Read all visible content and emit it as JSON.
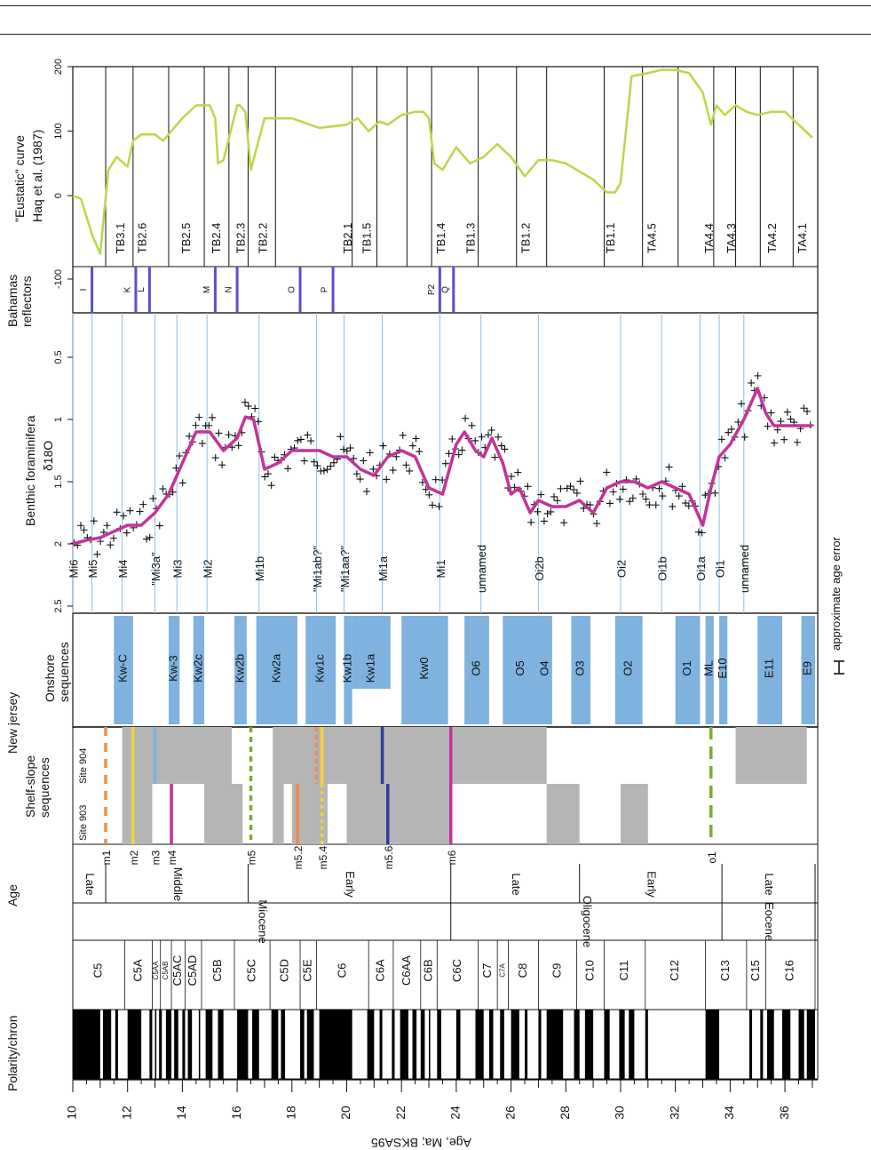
{
  "colors": {
    "eustatic": "#b7d94a",
    "isotope_mean": "#c2339a",
    "onshore_fill": "#7fb2de",
    "sequence_grey": "#b5b5b5",
    "reflector_line": "#5b4fc9",
    "mi_line": "#8cc0e6"
  },
  "row_labels": {
    "polarity": "Polarity/chron",
    "age": "Age",
    "shelf_slope": "Shelf-slope\nsequences",
    "site_903": "Site 903",
    "site_904": "Site 904",
    "new_jersey": "New jersey",
    "onshore": "Onshore\nsequences",
    "isotope_line1": "Benthic foraminifera",
    "isotope_line2": "δ18O",
    "bahamas": "Bahamas\nreflectors",
    "eustatic_line1": "\"Eustatic\" curve",
    "eustatic_line2": "Haq et al. (1987)",
    "age_axis_title": "Age, Ma; BKSA95",
    "age_error": "approximate age error"
  },
  "chart_data": {
    "type": "line",
    "x_axis": {
      "label": "Age, Ma; BKSA95",
      "range": [
        10,
        37.1
      ],
      "ticks": [
        10,
        12,
        14,
        16,
        18,
        20,
        22,
        24,
        26,
        28,
        30,
        32,
        34,
        36
      ]
    },
    "chrons": [
      {
        "name": "C5",
        "start": 10.0,
        "end": 11.9
      },
      {
        "name": "C5A",
        "start": 11.9,
        "end": 12.9
      },
      {
        "name": "C5AA",
        "start": 12.9,
        "end": 13.2
      },
      {
        "name": "C5AB",
        "start": 13.2,
        "end": 13.6
      },
      {
        "name": "C5AC",
        "start": 13.6,
        "end": 14.1
      },
      {
        "name": "C5AD",
        "start": 14.1,
        "end": 14.7
      },
      {
        "name": "C5B",
        "start": 14.7,
        "end": 15.9
      },
      {
        "name": "C5C",
        "start": 15.9,
        "end": 17.2
      },
      {
        "name": "C5D",
        "start": 17.2,
        "end": 18.3
      },
      {
        "name": "C5E",
        "start": 18.3,
        "end": 18.9
      },
      {
        "name": "C6",
        "start": 18.9,
        "end": 20.8
      },
      {
        "name": "C6A",
        "start": 20.8,
        "end": 21.7
      },
      {
        "name": "C6AA",
        "start": 21.7,
        "end": 22.7
      },
      {
        "name": "C6B",
        "start": 22.7,
        "end": 23.3
      },
      {
        "name": "C6C",
        "start": 23.3,
        "end": 24.8
      },
      {
        "name": "C7",
        "start": 24.8,
        "end": 25.5
      },
      {
        "name": "C7A",
        "start": 25.5,
        "end": 25.9
      },
      {
        "name": "C8",
        "start": 25.9,
        "end": 27.0
      },
      {
        "name": "C9",
        "start": 27.0,
        "end": 28.4
      },
      {
        "name": "C10",
        "start": 28.4,
        "end": 29.4
      },
      {
        "name": "C11",
        "start": 29.4,
        "end": 30.9
      },
      {
        "name": "C12",
        "start": 30.9,
        "end": 33.1
      },
      {
        "name": "C13",
        "start": 33.1,
        "end": 34.6
      },
      {
        "name": "C15",
        "start": 34.6,
        "end": 35.3
      },
      {
        "name": "C16",
        "start": 35.3,
        "end": 37.1
      }
    ],
    "polarity_normal": [
      [
        10.0,
        11.0
      ],
      [
        11.1,
        11.4
      ],
      [
        11.55,
        11.65
      ],
      [
        12.0,
        12.5
      ],
      [
        12.8,
        12.9
      ],
      [
        13.0,
        13.05
      ],
      [
        13.15,
        13.25
      ],
      [
        13.4,
        13.6
      ],
      [
        13.7,
        13.85
      ],
      [
        14.0,
        14.1
      ],
      [
        14.2,
        14.35
      ],
      [
        14.6,
        14.65
      ],
      [
        14.85,
        15.1
      ],
      [
        15.3,
        15.5
      ],
      [
        16.0,
        16.4
      ],
      [
        16.55,
        16.8
      ],
      [
        17.25,
        17.5
      ],
      [
        17.6,
        17.75
      ],
      [
        18.3,
        18.45
      ],
      [
        18.55,
        18.8
      ],
      [
        19.0,
        20.2
      ],
      [
        20.75,
        21.0
      ],
      [
        21.2,
        21.3
      ],
      [
        21.65,
        21.75
      ],
      [
        21.95,
        22.25
      ],
      [
        22.4,
        22.55
      ],
      [
        22.7,
        22.85
      ],
      [
        23.0,
        23.05
      ],
      [
        23.3,
        23.45
      ],
      [
        24.0,
        24.15
      ],
      [
        24.7,
        25.0
      ],
      [
        25.2,
        25.35
      ],
      [
        25.6,
        25.75
      ],
      [
        26.0,
        26.3
      ],
      [
        26.5,
        26.6
      ],
      [
        27.0,
        27.1
      ],
      [
        27.3,
        27.9
      ],
      [
        28.3,
        28.5
      ],
      [
        28.7,
        29.0
      ],
      [
        29.4,
        29.6
      ],
      [
        29.95,
        30.15
      ],
      [
        30.3,
        30.5
      ],
      [
        30.9,
        31.0
      ],
      [
        33.1,
        33.6
      ],
      [
        34.7,
        34.8
      ],
      [
        35.1,
        35.2
      ],
      [
        35.35,
        35.6
      ],
      [
        35.9,
        36.2
      ],
      [
        36.5,
        36.7
      ],
      [
        36.8,
        37.1
      ]
    ],
    "epochs": [
      {
        "label": "Miocene",
        "start": 10.0,
        "end": 23.8
      },
      {
        "label": "Oligocene",
        "start": 23.8,
        "end": 33.7
      },
      {
        "label": "Eocene",
        "start": 33.7,
        "end": 37.1
      }
    ],
    "stages": [
      {
        "label": "Late",
        "start": 10.0,
        "end": 11.2
      },
      {
        "label": "Middle",
        "start": 11.2,
        "end": 16.4
      },
      {
        "label": "Early",
        "start": 16.4,
        "end": 23.8
      },
      {
        "label": "Late",
        "start": 23.8,
        "end": 28.5
      },
      {
        "label": "Early",
        "start": 28.5,
        "end": 33.7
      },
      {
        "label": "Late",
        "start": 33.7,
        "end": 37.1
      }
    ],
    "seismic_sequences": [
      {
        "label": "m1",
        "age": 11.2
      },
      {
        "label": "m2",
        "age": 12.2
      },
      {
        "label": "m3",
        "age": 13.0
      },
      {
        "label": "m4",
        "age": 13.6
      },
      {
        "label": "m5",
        "age": 16.5
      },
      {
        "label": "m5.2",
        "age": 18.2
      },
      {
        "label": "m5.4",
        "age": 19.1
      },
      {
        "label": "m5.6",
        "age": 21.5
      },
      {
        "label": "m6",
        "age": 23.8
      },
      {
        "label": "o1",
        "age": 33.3
      }
    ],
    "shelf_grey_904": [
      [
        11.8,
        15.8
      ],
      [
        17.3,
        27.3
      ],
      [
        34.2,
        36.8
      ]
    ],
    "shelf_grey_903": [
      [
        11.8,
        12.9
      ],
      [
        14.8,
        16.2
      ],
      [
        17.3,
        17.7
      ],
      [
        18.0,
        19.3
      ],
      [
        20.0,
        23.8
      ],
      [
        27.3,
        28.5
      ],
      [
        30.0,
        31.0
      ]
    ],
    "onshore_sequences": [
      {
        "label": "Kw-C",
        "start": 11.5,
        "end": 12.2
      },
      {
        "label": "Kw-3",
        "start": 13.5,
        "end": 13.9
      },
      {
        "label": "Kw2c",
        "start": 14.4,
        "end": 14.8
      },
      {
        "label": "Kw2b",
        "start": 15.9,
        "end": 16.35
      },
      {
        "label": "Kw2a",
        "start": 16.7,
        "end": 18.2
      },
      {
        "label": "Kw1c",
        "start": 18.5,
        "end": 19.6
      },
      {
        "label": "Kw1b",
        "start": 19.9,
        "end": 20.2
      },
      {
        "label": "Kw1a",
        "start": 20.2,
        "end": 21.6
      },
      {
        "label": "Kw0",
        "start": 22.0,
        "end": 23.7
      },
      {
        "label": "O6",
        "start": 24.3,
        "end": 25.2
      },
      {
        "label": "O5",
        "start": 25.7,
        "end": 27.0
      },
      {
        "label": "O4",
        "start": 27.0,
        "end": 27.5
      },
      {
        "label": "O3",
        "start": 28.2,
        "end": 28.9
      },
      {
        "label": "O2",
        "start": 29.8,
        "end": 30.8
      },
      {
        "label": "O1",
        "start": 32.0,
        "end": 32.9
      },
      {
        "label": "ML",
        "start": 33.1,
        "end": 33.4
      },
      {
        "label": "E10",
        "start": 33.6,
        "end": 33.9
      },
      {
        "label": "E11",
        "start": 35.0,
        "end": 35.9
      },
      {
        "label": "E9",
        "start": 36.6,
        "end": 37.1
      }
    ],
    "isotope_events": [
      {
        "label": "Mi6",
        "age": 10.0
      },
      {
        "label": "Mi5",
        "age": 10.7
      },
      {
        "label": "Mi4",
        "age": 11.8
      },
      {
        "label": "\"Mi3a\"",
        "age": 13.0
      },
      {
        "label": "Mi3",
        "age": 13.8
      },
      {
        "label": "Mi2",
        "age": 14.9
      },
      {
        "label": "Mi1b",
        "age": 16.8
      },
      {
        "label": "\"Mi1ab?\"",
        "age": 18.9
      },
      {
        "label": "\"Mi1aa?\"",
        "age": 19.9
      },
      {
        "label": "Mi1a",
        "age": 21.3
      },
      {
        "label": "Mi1",
        "age": 23.4
      },
      {
        "label": "unnamed",
        "age": 24.9
      },
      {
        "label": "Oi2b",
        "age": 27.0
      },
      {
        "label": "Oi2",
        "age": 30.0
      },
      {
        "label": "Oi1b",
        "age": 31.5
      },
      {
        "label": "Oi1a",
        "age": 32.9
      },
      {
        "label": "Oi1",
        "age": 33.6
      },
      {
        "label": "unnamed",
        "age": 34.5
      }
    ],
    "isotope_axis": {
      "range": [
        2.5,
        0.2
      ],
      "ticks": [
        2.5,
        2,
        1.5,
        1,
        0.5
      ]
    },
    "isotope_mean": {
      "x": [
        10.0,
        10.5,
        11.0,
        11.5,
        12.0,
        12.5,
        13.0,
        13.5,
        14.0,
        14.5,
        15.0,
        15.5,
        16.0,
        16.3,
        16.6,
        17.0,
        17.5,
        18.0,
        18.5,
        19.0,
        19.5,
        20.0,
        20.5,
        21.0,
        21.5,
        22.0,
        22.5,
        23.0,
        23.5,
        24.0,
        24.3,
        24.7,
        25.0,
        25.3,
        25.7,
        26.0,
        26.3,
        26.7,
        27.0,
        27.5,
        28.0,
        28.5,
        29.0,
        29.5,
        30.0,
        30.5,
        31.0,
        31.5,
        32.0,
        32.5,
        33.0,
        33.3,
        33.6,
        34.0,
        34.5,
        35.0,
        35.3,
        35.6,
        36.0,
        36.5,
        37.0
      ],
      "y": [
        2.0,
        1.97,
        1.95,
        1.9,
        1.85,
        1.85,
        1.75,
        1.6,
        1.35,
        1.1,
        1.1,
        1.25,
        1.15,
        0.98,
        1.0,
        1.4,
        1.35,
        1.25,
        1.25,
        1.25,
        1.3,
        1.3,
        1.4,
        1.45,
        1.3,
        1.25,
        1.3,
        1.55,
        1.6,
        1.2,
        1.1,
        1.25,
        1.3,
        1.15,
        1.35,
        1.6,
        1.55,
        1.75,
        1.65,
        1.7,
        1.7,
        1.65,
        1.75,
        1.55,
        1.5,
        1.5,
        1.55,
        1.5,
        1.55,
        1.6,
        1.85,
        1.55,
        1.3,
        1.2,
        1.0,
        0.75,
        0.95,
        1.05,
        1.05,
        1.05,
        1.05
      ]
    },
    "bahamas_reflectors": [
      {
        "label": "I",
        "age": 10.7
      },
      {
        "label": "K",
        "age": 12.3
      },
      {
        "label": "L",
        "age": 12.8
      },
      {
        "label": "M",
        "age": 15.2
      },
      {
        "label": "N",
        "age": 16.0
      },
      {
        "label": "O",
        "age": 18.3
      },
      {
        "label": "P",
        "age": 19.5
      },
      {
        "label": "P2",
        "age": 23.4
      },
      {
        "label": "Q",
        "age": 23.9
      }
    ],
    "bahamas_axis": {
      "ticks": [
        -100
      ]
    },
    "eustatic_axis": {
      "range": [
        -110,
        200
      ],
      "ticks": [
        0,
        100,
        200
      ]
    },
    "eustatic_boundaries": [
      11.2,
      12.2,
      13.5,
      14.8,
      15.7,
      16.4,
      17.4,
      20.2,
      21.1,
      22.2,
      23.1,
      24.8,
      26.2,
      27.3,
      29.4,
      30.8,
      32.1,
      33.4,
      34.2,
      35.1,
      36.3
    ],
    "eustatic_labels": [
      {
        "label": "TB3.1",
        "age": 11.7
      },
      {
        "label": "TB2.6",
        "age": 12.5
      },
      {
        "label": "TB2.5",
        "age": 14.1
      },
      {
        "label": "TB2.4",
        "age": 15.2
      },
      {
        "label": "TB2.3",
        "age": 16.1
      },
      {
        "label": "TB2.2",
        "age": 16.9
      },
      {
        "label": "TB2.1",
        "age": 20.0
      },
      {
        "label": "TB1.5",
        "age": 20.7
      },
      {
        "label": "TB1.4",
        "age": 23.4
      },
      {
        "label": "TB1.3",
        "age": 24.5
      },
      {
        "label": "TB1.2",
        "age": 26.5
      },
      {
        "label": "TB1.1",
        "age": 29.6
      },
      {
        "label": "TA4.5",
        "age": 31.1
      },
      {
        "label": "TA4.4",
        "age": 33.2
      },
      {
        "label": "TA4.3",
        "age": 34.0
      },
      {
        "label": "TA4.2",
        "age": 35.5
      },
      {
        "label": "TA4.1",
        "age": 36.6
      }
    ],
    "eustatic_curve": {
      "x": [
        10.0,
        10.3,
        10.7,
        11.0,
        11.3,
        11.6,
        12.0,
        12.2,
        12.5,
        13.0,
        13.3,
        13.6,
        14.0,
        14.5,
        15.0,
        15.2,
        15.3,
        15.5,
        16.0,
        16.1,
        16.3,
        16.5,
        17.0,
        18.0,
        19.0,
        20.0,
        20.4,
        20.8,
        21.2,
        21.5,
        22.0,
        22.5,
        22.8,
        23.0,
        23.2,
        23.5,
        24.0,
        24.5,
        25.0,
        25.5,
        26.0,
        26.5,
        27.0,
        27.5,
        28.0,
        29.0,
        29.5,
        29.8,
        30.0,
        30.4,
        31.0,
        31.5,
        32.0,
        32.5,
        33.0,
        33.3,
        33.5,
        33.8,
        34.2,
        34.6,
        35.0,
        35.5,
        36.0,
        36.5,
        37.0
      ],
      "y": [
        0,
        -5,
        -60,
        -90,
        40,
        60,
        45,
        85,
        95,
        95,
        85,
        100,
        120,
        140,
        140,
        120,
        50,
        55,
        140,
        140,
        130,
        40,
        120,
        120,
        105,
        110,
        120,
        100,
        115,
        110,
        125,
        130,
        130,
        120,
        50,
        40,
        75,
        50,
        60,
        80,
        60,
        30,
        55,
        55,
        50,
        25,
        5,
        5,
        20,
        185,
        190,
        195,
        195,
        190,
        160,
        110,
        140,
        125,
        140,
        130,
        125,
        130,
        130,
        110,
        90
      ]
    }
  }
}
